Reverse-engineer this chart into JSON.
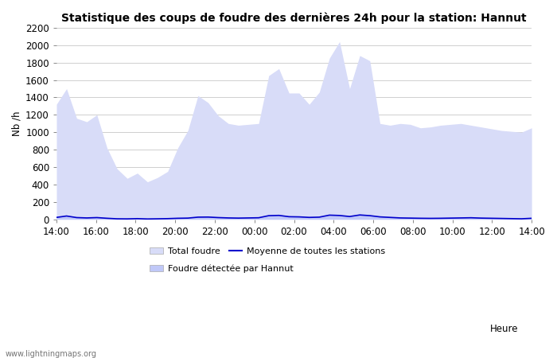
{
  "title": "Statistique des coups de foudre des dernières 24h pour la station: Hannut",
  "xlabel": "Heure",
  "ylabel": "Nb /h",
  "ylim": [
    0,
    2200
  ],
  "yticks": [
    0,
    200,
    400,
    600,
    800,
    1000,
    1200,
    1400,
    1600,
    1800,
    2000,
    2200
  ],
  "x_labels": [
    "14:00",
    "16:00",
    "18:00",
    "20:00",
    "22:00",
    "00:00",
    "02:00",
    "04:00",
    "06:00",
    "08:00",
    "10:00",
    "12:00",
    "14:00"
  ],
  "x_tick_every": 2,
  "total_foudre": [
    1320,
    1500,
    1160,
    1120,
    1200,
    820,
    580,
    470,
    530,
    430,
    480,
    550,
    820,
    1020,
    1420,
    1340,
    1190,
    1100,
    1080,
    1090,
    1100,
    1650,
    1730,
    1450,
    1450,
    1320,
    1460,
    1850,
    2040,
    1500,
    1880,
    1820,
    1100,
    1080,
    1100,
    1090,
    1050,
    1060,
    1080,
    1090,
    1100,
    1080,
    1060,
    1040,
    1020,
    1010,
    1000,
    1050
  ],
  "foudre_hannut": [
    30,
    45,
    25,
    20,
    25,
    15,
    8,
    6,
    10,
    5,
    8,
    10,
    15,
    18,
    30,
    32,
    25,
    20,
    18,
    20,
    22,
    50,
    55,
    38,
    35,
    28,
    30,
    55,
    52,
    38,
    60,
    50,
    35,
    28,
    20,
    18,
    15,
    14,
    16,
    18,
    20,
    22,
    18,
    15,
    12,
    10,
    8,
    15
  ],
  "moyenne_stations": [
    22,
    38,
    20,
    16,
    20,
    12,
    6,
    5,
    8,
    4,
    6,
    8,
    12,
    14,
    25,
    26,
    20,
    16,
    14,
    16,
    18,
    42,
    45,
    30,
    28,
    22,
    25,
    48,
    44,
    32,
    50,
    42,
    28,
    22,
    16,
    14,
    12,
    11,
    12,
    14,
    16,
    18,
    14,
    12,
    10,
    8,
    6,
    12
  ],
  "fill_total_color": "#d8dcf8",
  "fill_hannut_color": "#c0c8f8",
  "line_color": "#0000cc",
  "background_color": "#ffffff",
  "grid_color": "#c8c8c8",
  "title_fontsize": 10,
  "axis_fontsize": 8.5,
  "tick_fontsize": 8.5,
  "watermark": "www.lightningmaps.org",
  "legend_total": "Total foudre",
  "legend_hannut": "Foudre détectée par Hannut",
  "legend_moyenne": "Moyenne de toutes les stations"
}
